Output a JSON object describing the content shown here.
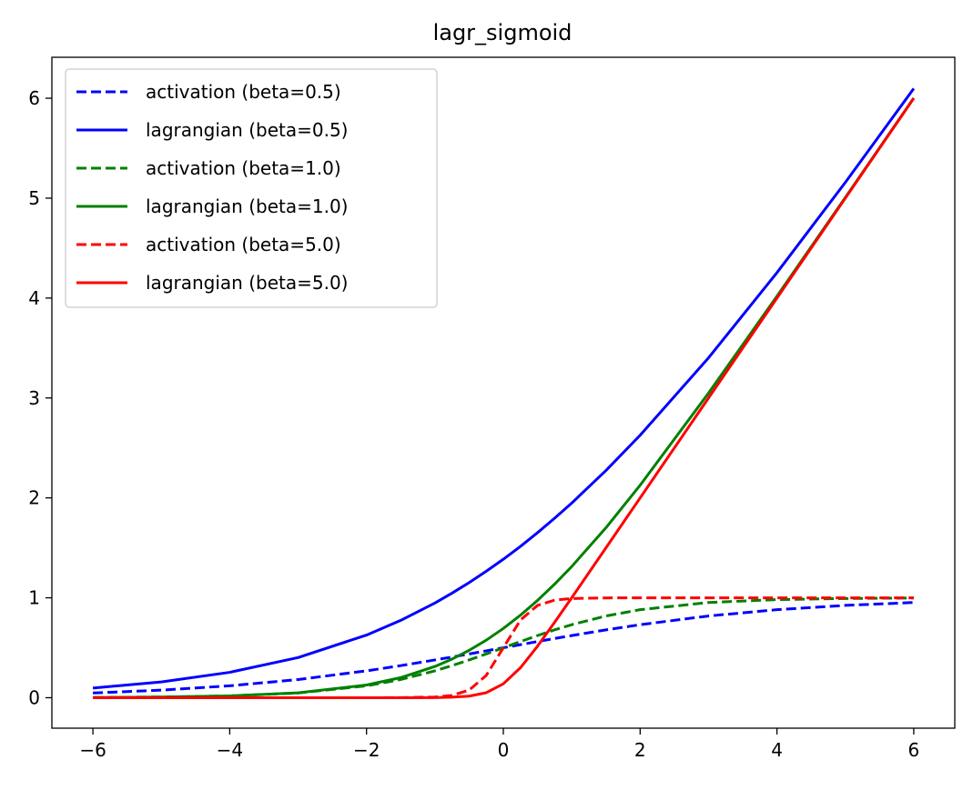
{
  "chart_data": {
    "type": "line",
    "title": "lagr_sigmoid",
    "xlabel": "",
    "ylabel": "",
    "xlim": [
      -6.6,
      6.6
    ],
    "ylim": [
      -0.305,
      6.41
    ],
    "grid": false,
    "legend_position": "top-left",
    "x_ticks": [
      -6,
      -4,
      -2,
      0,
      2,
      4,
      6
    ],
    "x_tick_labels": [
      "−6",
      "−4",
      "−2",
      "0",
      "2",
      "4",
      "6"
    ],
    "y_ticks": [
      0,
      1,
      2,
      3,
      4,
      5,
      6
    ],
    "y_tick_labels": [
      "0",
      "1",
      "2",
      "3",
      "4",
      "5",
      "6"
    ],
    "x": [
      -6,
      -5,
      -4,
      -3,
      -2,
      -1.5,
      -1,
      -0.75,
      -0.5,
      -0.25,
      0,
      0.25,
      0.5,
      0.75,
      1,
      1.5,
      2,
      3,
      4,
      5,
      6
    ],
    "series": [
      {
        "name": "activation (beta=0.5)",
        "color": "#0000ff",
        "style": "dashed",
        "values": [
          0.047,
          0.076,
          0.119,
          0.182,
          0.269,
          0.321,
          0.378,
          0.407,
          0.438,
          0.469,
          0.5,
          0.531,
          0.562,
          0.593,
          0.622,
          0.679,
          0.731,
          0.818,
          0.881,
          0.924,
          0.953
        ]
      },
      {
        "name": "lagrangian (beta=0.5)",
        "color": "#0000ff",
        "style": "solid",
        "values": [
          0.097,
          0.158,
          0.254,
          0.402,
          0.627,
          0.774,
          0.948,
          1.047,
          1.152,
          1.266,
          1.386,
          1.514,
          1.652,
          1.797,
          1.948,
          2.274,
          2.627,
          3.402,
          4.254,
          5.158,
          6.097
        ]
      },
      {
        "name": "activation (beta=1.0)",
        "color": "#008000",
        "style": "dashed",
        "values": [
          0.002,
          0.007,
          0.018,
          0.047,
          0.119,
          0.182,
          0.269,
          0.321,
          0.378,
          0.438,
          0.5,
          0.562,
          0.622,
          0.679,
          0.731,
          0.818,
          0.881,
          0.953,
          0.982,
          0.993,
          0.998
        ]
      },
      {
        "name": "lagrangian (beta=1.0)",
        "color": "#008000",
        "style": "solid",
        "values": [
          0.002,
          0.007,
          0.018,
          0.049,
          0.127,
          0.201,
          0.313,
          0.387,
          0.474,
          0.576,
          0.693,
          0.826,
          0.974,
          1.137,
          1.313,
          1.701,
          2.127,
          3.049,
          4.018,
          5.007,
          6.002
        ]
      },
      {
        "name": "activation (beta=5.0)",
        "color": "#ff0000",
        "style": "dashed",
        "values": [
          0.0,
          0.0,
          0.0,
          0.0,
          0.0,
          0.001,
          0.007,
          0.023,
          0.076,
          0.223,
          0.5,
          0.777,
          0.924,
          0.977,
          0.993,
          0.999,
          1.0,
          1.0,
          1.0,
          1.0,
          1.0
        ]
      },
      {
        "name": "lagrangian (beta=5.0)",
        "color": "#ff0000",
        "style": "solid",
        "values": [
          0.0,
          0.0,
          0.0,
          0.0,
          0.0,
          0.0,
          0.001,
          0.005,
          0.016,
          0.05,
          0.139,
          0.3,
          0.516,
          0.755,
          1.001,
          1.5,
          2.0,
          3.0,
          4.0,
          5.0,
          6.0
        ]
      }
    ]
  }
}
